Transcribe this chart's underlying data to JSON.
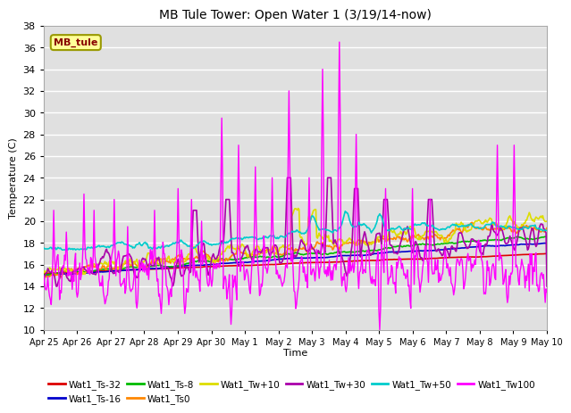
{
  "title": "MB Tule Tower: Open Water 1 (3/19/14-now)",
  "xlabel": "Time",
  "ylabel": "Temperature (C)",
  "ylim": [
    10,
    38
  ],
  "yticks": [
    10,
    12,
    14,
    16,
    18,
    20,
    22,
    24,
    26,
    28,
    30,
    32,
    34,
    36,
    38
  ],
  "background_color": "#ffffff",
  "plot_bg_color": "#e0e0e0",
  "grid_color": "#ffffff",
  "series": {
    "Wat1_Ts-32": {
      "color": "#dd0000",
      "lw": 1.2
    },
    "Wat1_Ts-16": {
      "color": "#0000cc",
      "lw": 1.2
    },
    "Wat1_Ts-8": {
      "color": "#00bb00",
      "lw": 1.2
    },
    "Wat1_Ts0": {
      "color": "#ff8800",
      "lw": 1.2
    },
    "Wat1_Tw+10": {
      "color": "#dddd00",
      "lw": 1.2
    },
    "Wat1_Tw+30": {
      "color": "#aa00aa",
      "lw": 1.2
    },
    "Wat1_Tw+50": {
      "color": "#00cccc",
      "lw": 1.2
    },
    "Wat1_Tw100": {
      "color": "#ff00ff",
      "lw": 1.0
    }
  },
  "n_points": 600,
  "x_start": 0,
  "x_end": 15,
  "xtick_positions": [
    0,
    1,
    2,
    3,
    4,
    5,
    6,
    7,
    8,
    9,
    10,
    11,
    12,
    13,
    14,
    15
  ],
  "xtick_labels": [
    "Apr 25",
    "Apr 26",
    "Apr 27",
    "Apr 28",
    "Apr 29",
    "Apr 30",
    "May 1",
    "May 2",
    "May 3",
    "May 4",
    "May 5",
    "May 6",
    "May 7",
    "May 8",
    "May 9",
    "May 10"
  ],
  "legend_label": "MB_tule",
  "legend_color": "#880000",
  "legend_bg": "#ffff99",
  "legend_border": "#999900"
}
